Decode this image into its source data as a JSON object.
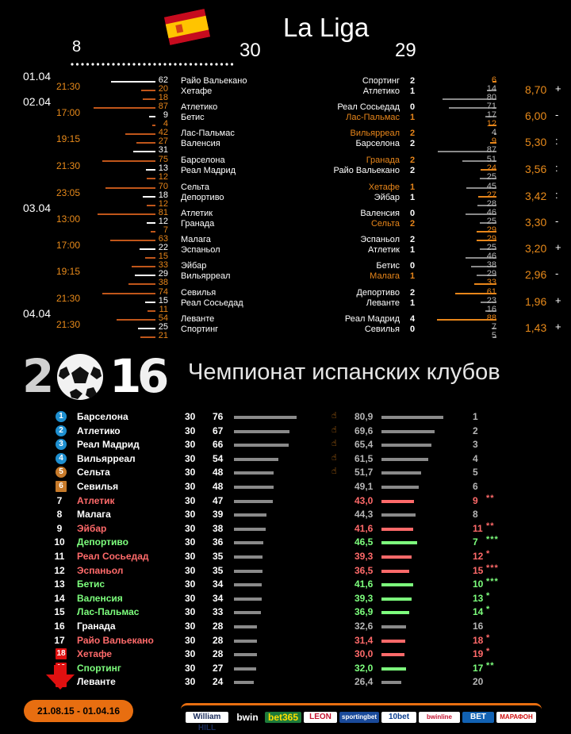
{
  "header": {
    "title": "La Liga",
    "left_value": "8",
    "center_value": "30",
    "right_value": "29"
  },
  "dates": [
    "01.04",
    "02.04",
    "03.04",
    "04.04"
  ],
  "matches": [
    {
      "time": "21:30",
      "pcts": [
        "62",
        "20",
        "18"
      ],
      "home": "Райо Вальекано",
      "away": "Хетафе",
      "s_home": "Спортинг",
      "s_away": "Атлетико",
      "sc_home": "2",
      "sc_away": "1",
      "r": [
        "6",
        "14",
        "80"
      ],
      "odds": "8,70",
      "ind": "+",
      "hl": 0,
      "rhl": 0
    },
    {
      "time": "17:00",
      "pcts": [
        "87",
        "9",
        "4"
      ],
      "home": "Атлетико",
      "away": "Бетис",
      "s_home": "Реал Сосьедад",
      "s_away": "Лас-Пальмас",
      "sc_home": "0",
      "sc_away": "1",
      "r": [
        "71",
        "17",
        "12"
      ],
      "odds": "6,00",
      "ind": "-",
      "hl": 1,
      "rhl": 2
    },
    {
      "time": "19:15",
      "pcts": [
        "42",
        "27",
        "31"
      ],
      "home": "Лас-Пальмас",
      "away": "Валенсия",
      "s_home": "Вильярреал",
      "s_away": "Барселона",
      "sc_home": "2",
      "sc_away": "2",
      "r": [
        "4",
        "9",
        "87"
      ],
      "odds": "5,30",
      "ind": ":",
      "hl": 2,
      "rhl": 1
    },
    {
      "time": "21:30",
      "pcts": [
        "75",
        "13",
        "12"
      ],
      "home": "Барселона",
      "away": "Реал Мадрид",
      "s_home": "Гранада",
      "s_away": "Райо Вальекано",
      "sc_home": "2",
      "sc_away": "2",
      "r": [
        "51",
        "24",
        "25"
      ],
      "odds": "3,56",
      "ind": ":",
      "hl": 1,
      "rhl": 1
    },
    {
      "time": "23:05",
      "pcts": [
        "70",
        "18",
        "12"
      ],
      "home": "Сельта",
      "away": "Депортиво",
      "s_home": "Хетафе",
      "s_away": "Эйбар",
      "sc_home": "1",
      "sc_away": "1",
      "r": [
        "45",
        "27",
        "28"
      ],
      "odds": "3,42",
      "ind": ":",
      "hl": 1,
      "rhl": 1
    },
    {
      "time": "13:00",
      "pcts": [
        "81",
        "12",
        "7"
      ],
      "home": "Атлетик",
      "away": "Гранада",
      "s_home": "Валенсия",
      "s_away": "Сельта",
      "sc_home": "0",
      "sc_away": "2",
      "r": [
        "46",
        "25",
        "29"
      ],
      "odds": "3,30",
      "ind": "-",
      "hl": 1,
      "rhl": 2
    },
    {
      "time": "17:00",
      "pcts": [
        "63",
        "22",
        "15"
      ],
      "home": "Малага",
      "away": "Эспаньол",
      "s_home": "Эспаньол",
      "s_away": "Атлетик",
      "sc_home": "2",
      "sc_away": "1",
      "r": [
        "29",
        "25",
        "46"
      ],
      "odds": "3,20",
      "ind": "+",
      "hl": 1,
      "rhl": 0
    },
    {
      "time": "19:15",
      "pcts": [
        "33",
        "29",
        "38"
      ],
      "home": "Эйбар",
      "away": "Вильярреал",
      "s_home": "Бетис",
      "s_away": "Малага",
      "sc_home": "0",
      "sc_away": "1",
      "r": [
        "38",
        "29",
        "33"
      ],
      "odds": "2,96",
      "ind": "-",
      "hl": 1,
      "rhl": 2
    },
    {
      "time": "21:30",
      "pcts": [
        "74",
        "15",
        "11"
      ],
      "home": "Севилья",
      "away": "Реал Сосьедад",
      "s_home": "Депортиво",
      "s_away": "Леванте",
      "sc_home": "2",
      "sc_away": "1",
      "r": [
        "61",
        "23",
        "16"
      ],
      "odds": "1,96",
      "ind": "+",
      "hl": 1,
      "rhl": 0
    },
    {
      "time": "21:30",
      "pcts": [
        "54",
        "25",
        "21"
      ],
      "home": "Леванте",
      "away": "Спортинг",
      "s_home": "Реал Мадрид",
      "s_away": "Севилья",
      "sc_home": "4",
      "sc_away": "0",
      "r": [
        "88",
        "7",
        "5"
      ],
      "odds": "1,43",
      "ind": "+",
      "hl": 1,
      "rhl": 0
    }
  ],
  "banner": {
    "year_digits": [
      "2",
      "1",
      "6"
    ],
    "subtitle": "Чемпионат испанских клубов"
  },
  "table": [
    {
      "pos": "1",
      "name": "Барселона",
      "games": "30",
      "pts": "76",
      "thumb": true,
      "rating": "80,9",
      "rank": "1",
      "stars": "",
      "badge": "#1e8fd0",
      "nc": "white",
      "rc": "gray",
      "rv": 80.9
    },
    {
      "pos": "2",
      "name": "Атлетико",
      "games": "30",
      "pts": "67",
      "thumb": true,
      "rating": "69,6",
      "rank": "2",
      "stars": "",
      "badge": "#1e8fd0",
      "nc": "white",
      "rc": "gray",
      "rv": 69.6
    },
    {
      "pos": "3",
      "name": "Реал Мадрид",
      "games": "30",
      "pts": "66",
      "thumb": true,
      "rating": "65,4",
      "rank": "3",
      "stars": "",
      "badge": "#1e8fd0",
      "nc": "white",
      "rc": "gray",
      "rv": 65.4
    },
    {
      "pos": "4",
      "name": "Вильярреал",
      "games": "30",
      "pts": "54",
      "thumb": true,
      "rating": "61,5",
      "rank": "4",
      "stars": "",
      "badge": "#1e8fd0",
      "nc": "white",
      "rc": "gray",
      "rv": 61.5
    },
    {
      "pos": "5",
      "name": "Сельта",
      "games": "30",
      "pts": "48",
      "thumb": true,
      "rating": "51,7",
      "rank": "5",
      "stars": "",
      "badge": "#c77a2a",
      "nc": "white",
      "rc": "gray",
      "rv": 51.7
    },
    {
      "pos": "6",
      "name": "Севилья",
      "games": "30",
      "pts": "48",
      "thumb": false,
      "rating": "49,1",
      "rank": "6",
      "stars": "",
      "badge": "#c77a2a",
      "nc": "white",
      "rc": "gray",
      "rv": 49.1
    },
    {
      "pos": "7",
      "name": "Атлетик",
      "games": "30",
      "pts": "47",
      "thumb": false,
      "rating": "43,0",
      "rank": "9",
      "stars": "**",
      "badge": "",
      "nc": "pink",
      "rc": "pink",
      "rv": 43.0
    },
    {
      "pos": "8",
      "name": "Малага",
      "games": "30",
      "pts": "39",
      "thumb": false,
      "rating": "44,3",
      "rank": "8",
      "stars": "",
      "badge": "",
      "nc": "white",
      "rc": "gray",
      "rv": 44.3
    },
    {
      "pos": "9",
      "name": "Эйбар",
      "games": "30",
      "pts": "38",
      "thumb": false,
      "rating": "41,6",
      "rank": "11",
      "stars": "**",
      "badge": "",
      "nc": "pink",
      "rc": "pink",
      "rv": 41.6
    },
    {
      "pos": "10",
      "name": "Депортиво",
      "games": "30",
      "pts": "36",
      "thumb": false,
      "rating": "46,5",
      "rank": "7",
      "stars": "***",
      "badge": "",
      "nc": "green",
      "rc": "green",
      "rv": 46.5
    },
    {
      "pos": "11",
      "name": "Реал Сосьедад",
      "games": "30",
      "pts": "35",
      "thumb": false,
      "rating": "39,3",
      "rank": "12",
      "stars": "*",
      "badge": "",
      "nc": "pink",
      "rc": "pink",
      "rv": 39.3
    },
    {
      "pos": "12",
      "name": "Эспаньол",
      "games": "30",
      "pts": "35",
      "thumb": false,
      "rating": "36,5",
      "rank": "15",
      "stars": "***",
      "badge": "",
      "nc": "pink",
      "rc": "pink",
      "rv": 36.5
    },
    {
      "pos": "13",
      "name": "Бетис",
      "games": "30",
      "pts": "34",
      "thumb": false,
      "rating": "41,6",
      "rank": "10",
      "stars": "***",
      "badge": "",
      "nc": "green",
      "rc": "green",
      "rv": 41.6
    },
    {
      "pos": "14",
      "name": "Валенсия",
      "games": "30",
      "pts": "34",
      "thumb": false,
      "rating": "39,3",
      "rank": "13",
      "stars": "*",
      "badge": "",
      "nc": "green",
      "rc": "green",
      "rv": 39.3
    },
    {
      "pos": "15",
      "name": "Лас-Пальмас",
      "games": "30",
      "pts": "33",
      "thumb": false,
      "rating": "36,9",
      "rank": "14",
      "stars": "*",
      "badge": "",
      "nc": "green",
      "rc": "green",
      "rv": 36.9
    },
    {
      "pos": "16",
      "name": "Гранада",
      "games": "30",
      "pts": "28",
      "thumb": false,
      "rating": "32,6",
      "rank": "16",
      "stars": "",
      "badge": "",
      "nc": "white",
      "rc": "gray",
      "rv": 32.6
    },
    {
      "pos": "17",
      "name": "Райо Вальекано",
      "games": "30",
      "pts": "28",
      "thumb": false,
      "rating": "31,4",
      "rank": "18",
      "stars": "*",
      "badge": "",
      "nc": "pink",
      "rc": "pink",
      "rv": 31.4
    },
    {
      "pos": "18",
      "name": "Хетафе",
      "games": "30",
      "pts": "28",
      "thumb": false,
      "rating": "30,0",
      "rank": "19",
      "stars": "*",
      "badge": "#e01010",
      "nc": "pink",
      "rc": "pink",
      "rv": 30.0
    },
    {
      "pos": "19",
      "name": "Спортинг",
      "games": "30",
      "pts": "27",
      "thumb": false,
      "rating": "32,0",
      "rank": "17",
      "stars": "**",
      "badge": "#e01010",
      "nc": "green",
      "rc": "green",
      "rv": 32.0
    },
    {
      "pos": "20",
      "name": "Леванте",
      "games": "30",
      "pts": "24",
      "thumb": false,
      "rating": "26,4",
      "rank": "20",
      "stars": "",
      "badge": "#e01010",
      "nc": "white",
      "rc": "gray",
      "rv": 26.4
    }
  ],
  "footer": {
    "period": "21.08.15 - 01.04.16",
    "sponsors": [
      "William HILL",
      "bwin",
      "bet365",
      "LEON",
      "sportingbet",
      "10bet",
      "bwinline",
      "BET",
      "МАРАФОН"
    ]
  },
  "colors": {
    "accent": "#e8861a",
    "pink": "#ff6a6a",
    "green": "#7dff7d",
    "bar": "#8a8a8a"
  }
}
